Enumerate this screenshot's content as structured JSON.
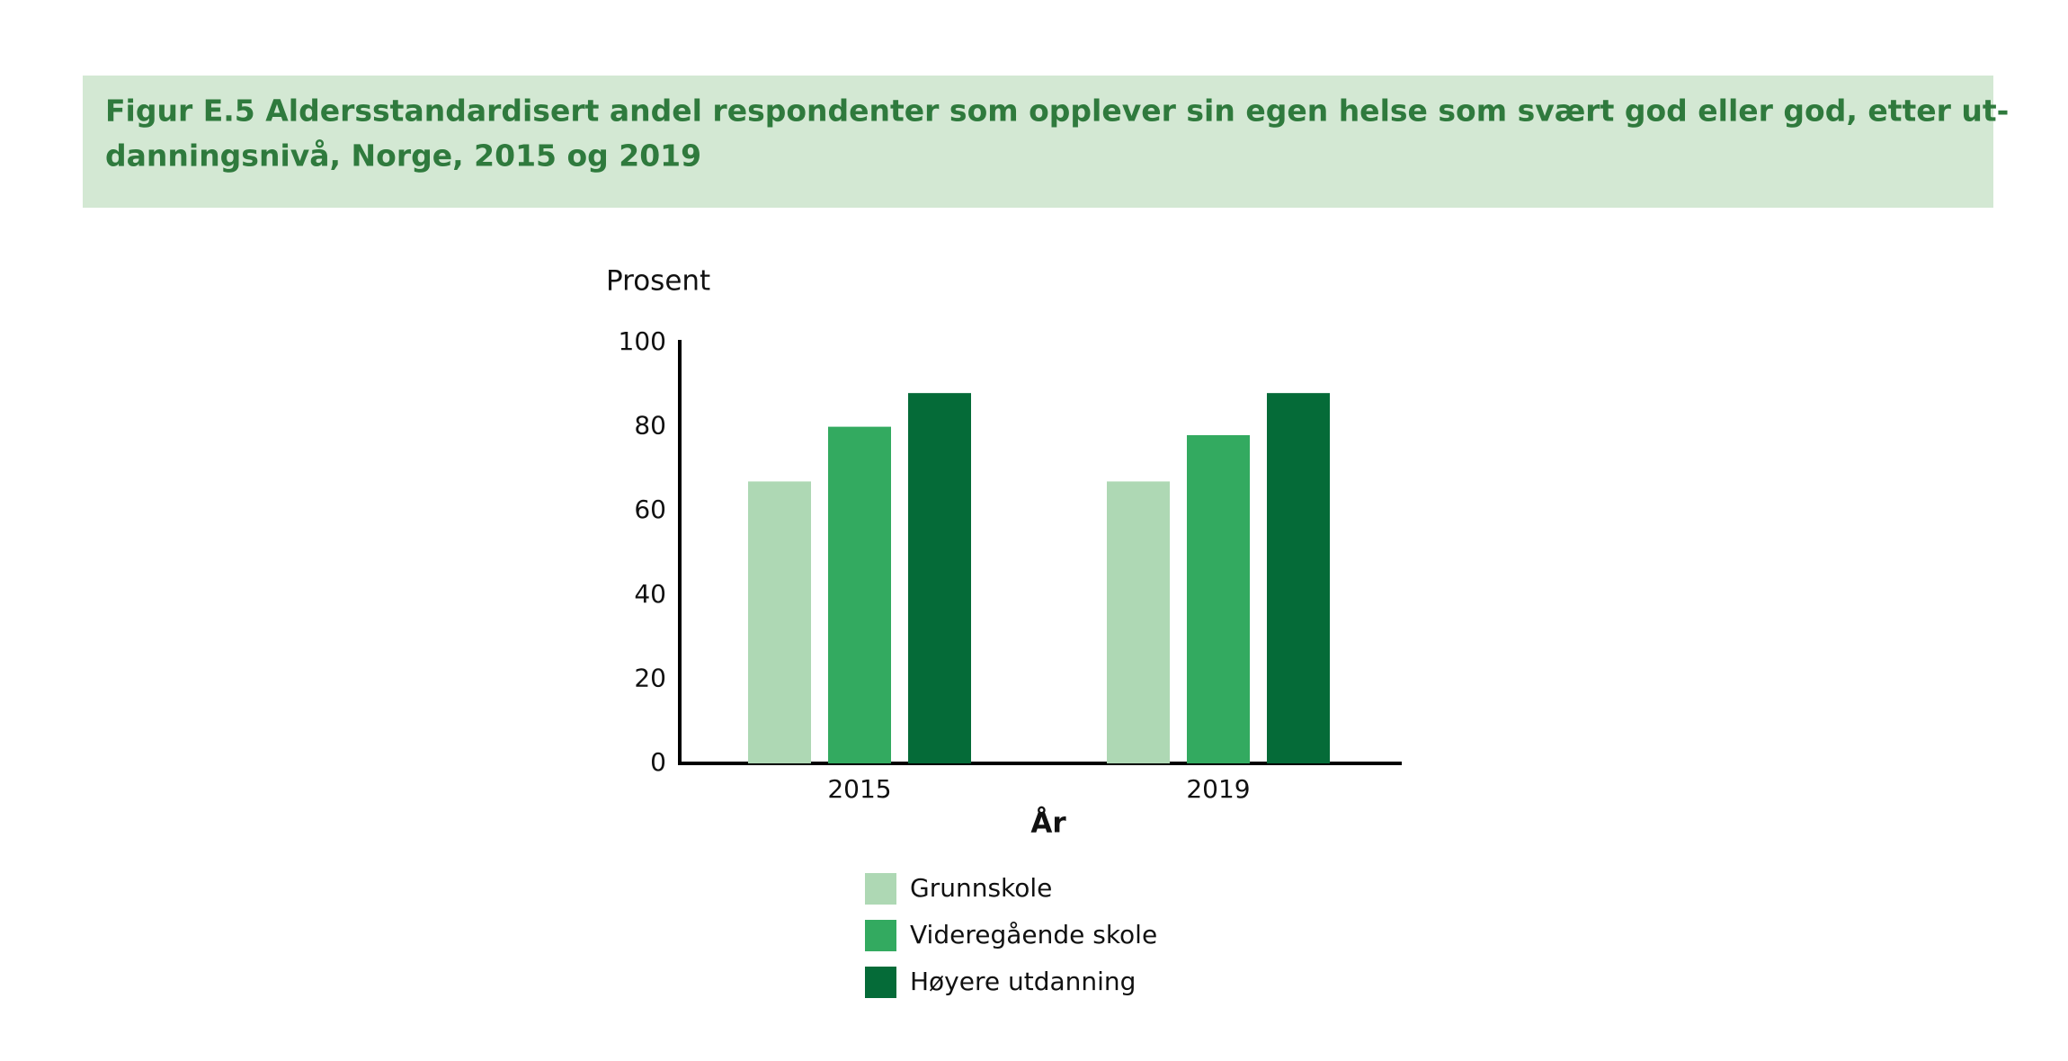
{
  "chart_data": {
    "type": "bar",
    "title": [
      "Figur E.5 Aldersstandardisert andel respondenter som opplever sin egen helse som svært god eller god, etter ut-",
      "danningsnivå, Norge, 2015 og 2019"
    ],
    "y_label": "Prosent",
    "x_label": "År",
    "categories": [
      "2015",
      "2019"
    ],
    "series": [
      {
        "name": "Grunnskole",
        "color": "#aed8b4",
        "values": [
          67,
          67
        ]
      },
      {
        "name": "Videregående skole",
        "color": "#33aa60",
        "values": [
          80,
          78
        ]
      },
      {
        "name": "Høyere utdanning",
        "color": "#056b38",
        "values": [
          88,
          88
        ]
      }
    ],
    "ylim": [
      0,
      100
    ],
    "yticks": [
      0,
      20,
      40,
      60,
      80,
      100
    ],
    "grid": false
  }
}
